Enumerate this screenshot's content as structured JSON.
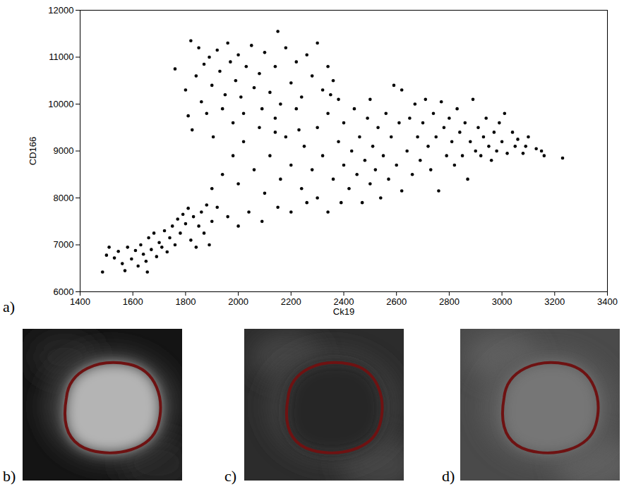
{
  "chart_data": {
    "type": "scatter",
    "x_label": "Ck19",
    "y_label": "CD166",
    "color": "#000000",
    "marker": "circle",
    "xlim": [
      1400,
      3400
    ],
    "xticks": [
      1400,
      1600,
      1800,
      2000,
      2200,
      2400,
      2600,
      2800,
      3000,
      3200,
      3400
    ],
    "ylim": [
      6000,
      12000
    ],
    "yticks": [
      6000,
      7000,
      8000,
      9000,
      10000,
      11000,
      12000
    ],
    "x": [
      1485,
      1500,
      1510,
      1530,
      1545,
      1560,
      1570,
      1580,
      1595,
      1610,
      1620,
      1630,
      1640,
      1650,
      1655,
      1660,
      1670,
      1680,
      1690,
      1700,
      1710,
      1720,
      1730,
      1740,
      1750,
      1760,
      1770,
      1780,
      1790,
      1800,
      1810,
      1820,
      1830,
      1840,
      1850,
      1860,
      1870,
      1880,
      1890,
      1900,
      1760,
      1800,
      1810,
      1820,
      1825,
      1840,
      1850,
      1860,
      1870,
      1880,
      1890,
      1900,
      1905,
      1920,
      1930,
      1940,
      1950,
      1960,
      1970,
      1980,
      1990,
      2000,
      2010,
      2020,
      2030,
      2050,
      2060,
      2080,
      2090,
      2100,
      2120,
      2140,
      2150,
      2160,
      2180,
      2200,
      2220,
      2240,
      2260,
      2280,
      2300,
      2320,
      2340,
      2360,
      2380,
      1900,
      1920,
      1940,
      1960,
      1980,
      2000,
      2000,
      2020,
      2040,
      2060,
      2080,
      2090,
      2100,
      2120,
      2140,
      2150,
      2160,
      2180,
      2200,
      2200,
      2220,
      2240,
      2250,
      2260,
      2280,
      2300,
      2300,
      2320,
      2340,
      2340,
      2360,
      2380,
      2390,
      2400,
      2400,
      2420,
      2430,
      2440,
      2450,
      2460,
      2470,
      2480,
      2490,
      2500,
      2500,
      2510,
      2520,
      2530,
      2540,
      2550,
      2560,
      2570,
      2580,
      2590,
      2600,
      2610,
      2620,
      2140,
      2230,
      2350,
      2620,
      2640,
      2650,
      2660,
      2670,
      2680,
      2690,
      2700,
      2710,
      2720,
      2730,
      2740,
      2750,
      2760,
      2770,
      2780,
      2790,
      2800,
      2810,
      2820,
      2830,
      2840,
      2850,
      2860,
      2870,
      2880,
      2890,
      2900,
      2910,
      2920,
      2930,
      2940,
      2950,
      2960,
      2970,
      2980,
      2990,
      3000,
      3010,
      3020,
      3040,
      3050,
      3060,
      3080,
      3090,
      3100,
      3130,
      3150,
      3160,
      3230
    ],
    "values": [
      6420,
      6780,
      6950,
      6720,
      6860,
      6600,
      6450,
      6950,
      6700,
      6880,
      6550,
      7000,
      6800,
      6650,
      6420,
      7150,
      6900,
      7250,
      6750,
      7050,
      6950,
      7300,
      6850,
      7150,
      7400,
      7000,
      7550,
      7250,
      7650,
      7450,
      7780,
      7100,
      7600,
      6950,
      7400,
      7700,
      7250,
      7850,
      7000,
      7500,
      10750,
      10300,
      9750,
      11350,
      9450,
      10600,
      11200,
      10050,
      10850,
      9800,
      11000,
      10400,
      9300,
      11150,
      10700,
      9900,
      10200,
      11300,
      10900,
      9600,
      10500,
      11050,
      10150,
      9800,
      10800,
      11250,
      10350,
      10650,
      9900,
      11100,
      10250,
      10800,
      11550,
      10000,
      11200,
      10450,
      10900,
      10150,
      11050,
      10600,
      11300,
      10300,
      10800,
      10500,
      10100,
      8200,
      7800,
      8500,
      7600,
      8900,
      7400,
      8300,
      9200,
      7700,
      8600,
      9500,
      7500,
      8100,
      8900,
      9700,
      7800,
      8400,
      9300,
      7700,
      8700,
      9900,
      8200,
      9100,
      7900,
      8600,
      9500,
      8000,
      8900,
      7700,
      9800,
      8400,
      9200,
      7900,
      8700,
      9600,
      8200,
      9000,
      9900,
      8500,
      9300,
      7900,
      8800,
      9700,
      8300,
      10100,
      9100,
      8600,
      9500,
      8000,
      8900,
      9800,
      8400,
      9300,
      10400,
      8700,
      9600,
      8150,
      9400,
      9450,
      10200,
      10300,
      9000,
      9700,
      8500,
      10000,
      9300,
      8800,
      9600,
      10100,
      9100,
      8600,
      9800,
      9300,
      8150,
      10050,
      9500,
      8900,
      9700,
      9200,
      8700,
      9900,
      9400,
      8900,
      9600,
      8400,
      9200,
      10100,
      9000,
      9500,
      8900,
      9300,
      9700,
      9100,
      8800,
      9400,
      9000,
      9600,
      9200,
      9800,
      8950,
      9400,
      9100,
      9250,
      8950,
      9100,
      9300,
      9050,
      9000,
      8900,
      8850
    ]
  },
  "panel_labels": [
    "a)",
    "b)",
    "c)",
    "d)"
  ]
}
